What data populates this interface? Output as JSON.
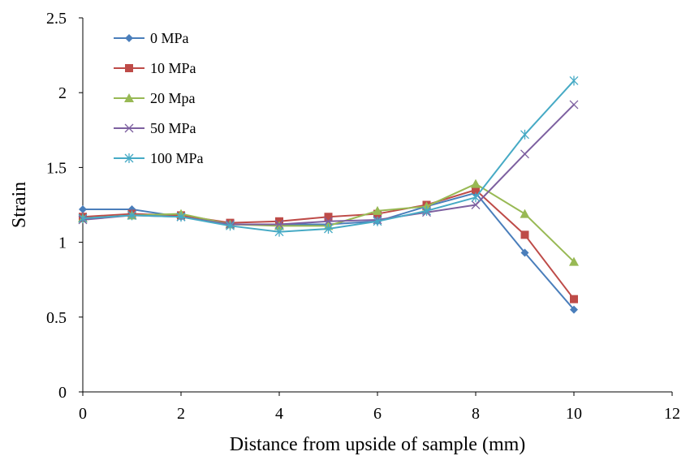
{
  "chart_data": {
    "type": "line",
    "xlabel": "Distance from upside of sample (mm)",
    "ylabel": "Strain",
    "xlim": [
      0,
      12
    ],
    "ylim": [
      0,
      2.5
    ],
    "xticks": [
      0,
      2,
      4,
      6,
      8,
      10,
      12
    ],
    "yticks": [
      0,
      0.5,
      1,
      1.5,
      2,
      2.5
    ],
    "ytick_labels": [
      "0",
      "0.5",
      "1",
      "1.5",
      "2",
      "2.5"
    ],
    "grid": false,
    "legend_position": "top-left",
    "x": [
      0,
      1,
      2,
      3,
      4,
      5,
      6,
      7,
      8,
      9,
      10
    ],
    "series": [
      {
        "name": "0 MPa",
        "color": "#4a7ebb",
        "marker": "diamond",
        "values": [
          1.22,
          1.22,
          1.17,
          1.12,
          1.12,
          1.12,
          1.14,
          1.24,
          1.33,
          0.93,
          0.55
        ]
      },
      {
        "name": "10 MPa",
        "color": "#be4b48",
        "marker": "square",
        "values": [
          1.17,
          1.19,
          1.18,
          1.13,
          1.14,
          1.17,
          1.19,
          1.25,
          1.35,
          1.05,
          0.62
        ]
      },
      {
        "name": "20 Mpa",
        "color": "#98b954",
        "marker": "triangle",
        "values": [
          1.16,
          1.18,
          1.19,
          1.12,
          1.11,
          1.11,
          1.21,
          1.24,
          1.39,
          1.19,
          0.87
        ]
      },
      {
        "name": "50 MPa",
        "color": "#7d60a0",
        "marker": "x",
        "values": [
          1.15,
          1.18,
          1.17,
          1.12,
          1.12,
          1.14,
          1.15,
          1.2,
          1.25,
          1.59,
          1.92
        ]
      },
      {
        "name": "100 MPa",
        "color": "#46aac5",
        "marker": "star",
        "values": [
          1.16,
          1.18,
          1.17,
          1.11,
          1.07,
          1.09,
          1.14,
          1.21,
          1.3,
          1.72,
          2.08
        ]
      }
    ]
  }
}
